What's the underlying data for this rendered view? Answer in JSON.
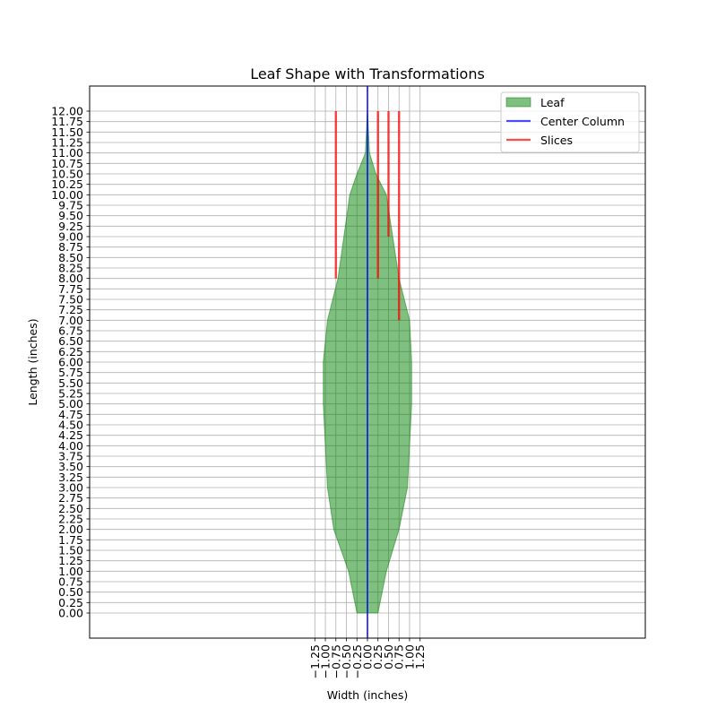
{
  "chart_data": {
    "type": "area",
    "title": "Leaf Shape with Transformations",
    "xlabel": "Width (inches)",
    "ylabel": "Length (inches)",
    "xlim": [
      -6.6,
      6.6
    ],
    "ylim": [
      -0.6,
      12.6
    ],
    "grid": true,
    "legend_position": "top-right",
    "x_ticks": [
      "−1.25",
      "−1.00",
      "−0.75",
      "−0.50",
      "−0.25",
      "0.00",
      "0.25",
      "0.50",
      "0.75",
      "1.00",
      "1.25"
    ],
    "x_tick_values": [
      -1.25,
      -1.0,
      -0.75,
      -0.5,
      -0.25,
      0.0,
      0.25,
      0.5,
      0.75,
      1.0,
      1.25
    ],
    "y_tick_values": [
      0.0,
      0.25,
      0.5,
      0.75,
      1.0,
      1.25,
      1.5,
      1.75,
      2.0,
      2.25,
      2.5,
      2.75,
      3.0,
      3.25,
      3.5,
      3.75,
      4.0,
      4.25,
      4.5,
      4.75,
      5.0,
      5.25,
      5.5,
      5.75,
      6.0,
      6.25,
      6.5,
      6.75,
      7.0,
      7.25,
      7.5,
      7.75,
      8.0,
      8.25,
      8.5,
      8.75,
      9.0,
      9.25,
      9.5,
      9.75,
      10.0,
      10.25,
      10.5,
      10.75,
      11.0,
      11.25,
      11.5,
      11.75,
      12.0
    ],
    "y_ticks": [
      "0.00",
      "0.25",
      "0.50",
      "0.75",
      "1.00",
      "1.25",
      "1.50",
      "1.75",
      "2.00",
      "2.25",
      "2.50",
      "2.75",
      "3.00",
      "3.25",
      "3.50",
      "3.75",
      "4.00",
      "4.25",
      "4.50",
      "4.75",
      "5.00",
      "5.25",
      "5.50",
      "5.75",
      "6.00",
      "6.25",
      "6.50",
      "6.75",
      "7.00",
      "7.25",
      "7.50",
      "7.75",
      "8.00",
      "8.25",
      "8.50",
      "8.75",
      "9.00",
      "9.25",
      "9.50",
      "9.75",
      "10.00",
      "10.25",
      "10.50",
      "10.75",
      "11.00",
      "11.25",
      "11.50",
      "11.75",
      "12.00"
    ],
    "series": [
      {
        "name": "Leaf",
        "kind": "filled-polygon",
        "color": "#008000",
        "x": [
          -0.25,
          -0.45,
          -0.8,
          -0.95,
          -1.05,
          -1.05,
          -0.95,
          -0.7,
          -0.42,
          -0.25,
          -0.05,
          0.0,
          0.05,
          0.2,
          0.45,
          0.75,
          1.0,
          1.05,
          1.05,
          0.95,
          0.75,
          0.45,
          0.25,
          0.25
        ],
        "y": [
          0.0,
          1.0,
          2.0,
          3.0,
          5.0,
          6.0,
          7.0,
          8.0,
          10.0,
          10.5,
          11.0,
          12.0,
          11.0,
          10.5,
          10.0,
          8.0,
          7.0,
          6.0,
          5.0,
          3.0,
          2.0,
          1.0,
          0.0,
          0.0
        ]
      },
      {
        "name": "Center Column",
        "kind": "line",
        "color": "#0000ff",
        "x": [
          0.0,
          0.0
        ],
        "y": [
          -0.6,
          12.6
        ]
      },
      {
        "name": "Slices",
        "kind": "segments",
        "color": "#ff0000",
        "segments": [
          {
            "x": -0.75,
            "y": [
              8.0,
              12.0
            ]
          },
          {
            "x": 0.25,
            "y": [
              8.0,
              12.0
            ]
          },
          {
            "x": 0.5,
            "y": [
              9.0,
              12.0
            ]
          },
          {
            "x": 0.75,
            "y": [
              7.0,
              12.0
            ]
          }
        ]
      }
    ],
    "legend": [
      {
        "label": "Leaf",
        "kind": "patch",
        "color": "#008000"
      },
      {
        "label": "Center Column",
        "kind": "line",
        "color": "#0000ff"
      },
      {
        "label": "Slices",
        "kind": "line",
        "color": "#ff0000"
      }
    ]
  }
}
